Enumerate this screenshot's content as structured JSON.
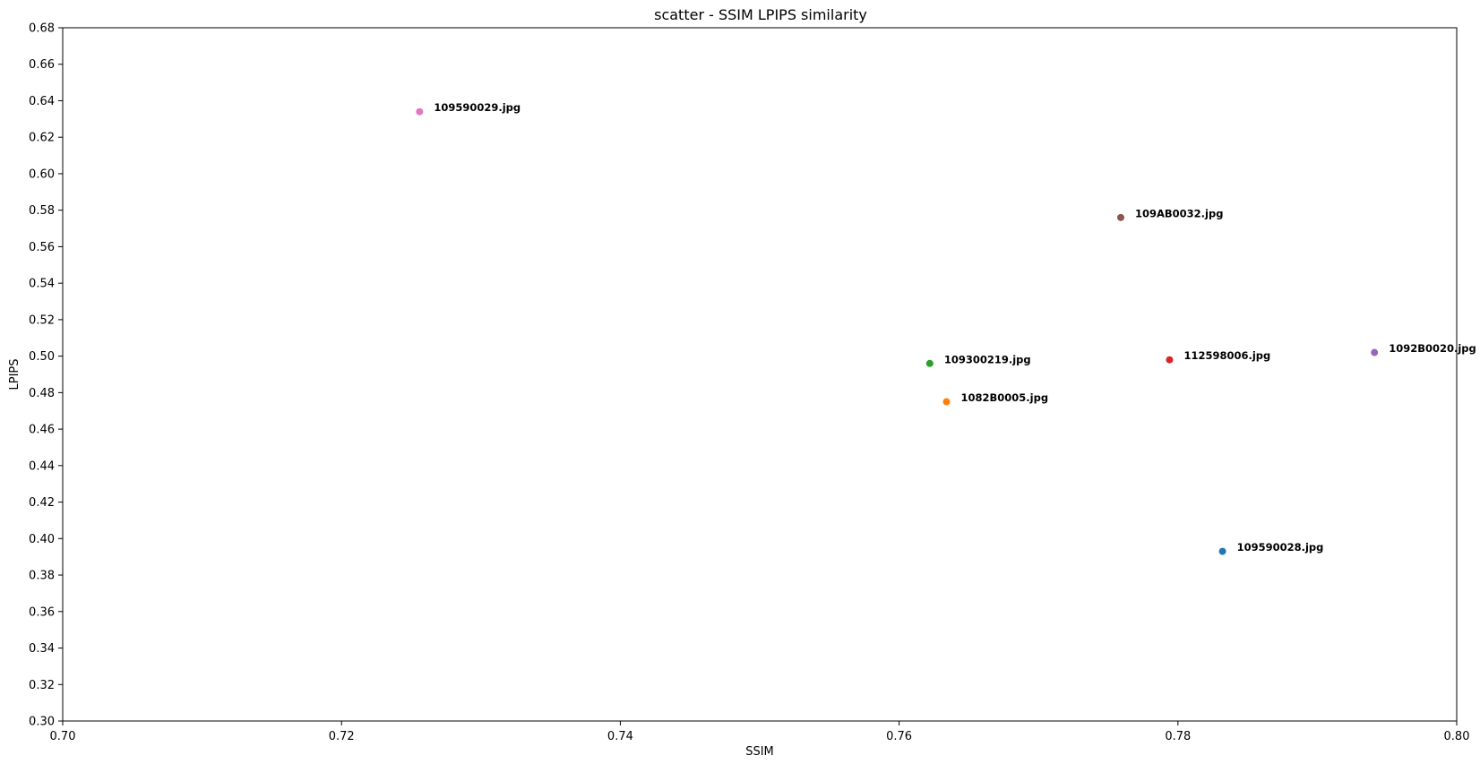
{
  "chart_data": {
    "type": "scatter",
    "title": "scatter - SSIM LPIPS similarity",
    "xlabel": "SSIM",
    "ylabel": "LPIPS",
    "xlim": [
      0.7,
      0.8
    ],
    "ylim": [
      0.3,
      0.68
    ],
    "x_ticks": [
      "0.70",
      "0.72",
      "0.74",
      "0.76",
      "0.78",
      "0.80"
    ],
    "y_ticks": [
      "0.30",
      "0.32",
      "0.34",
      "0.36",
      "0.38",
      "0.40",
      "0.42",
      "0.44",
      "0.46",
      "0.48",
      "0.50",
      "0.52",
      "0.54",
      "0.56",
      "0.58",
      "0.60",
      "0.62",
      "0.64",
      "0.66",
      "0.68"
    ],
    "grid": false,
    "points": [
      {
        "label": "109590028.jpg",
        "x": 0.7832,
        "y": 0.393,
        "color": "#1f77b4"
      },
      {
        "label": "1082B0005.jpg",
        "x": 0.7634,
        "y": 0.475,
        "color": "#ff7f0e"
      },
      {
        "label": "109300219.jpg",
        "x": 0.7622,
        "y": 0.496,
        "color": "#2ca02c"
      },
      {
        "label": "112598006.jpg",
        "x": 0.7794,
        "y": 0.498,
        "color": "#d62728"
      },
      {
        "label": "1092B0020.jpg",
        "x": 0.7941,
        "y": 0.502,
        "color": "#9467bd"
      },
      {
        "label": "109AB0032.jpg",
        "x": 0.7759,
        "y": 0.576,
        "color": "#8c564b"
      },
      {
        "label": "109590029.jpg",
        "x": 0.7256,
        "y": 0.634,
        "color": "#e377c2"
      }
    ]
  }
}
